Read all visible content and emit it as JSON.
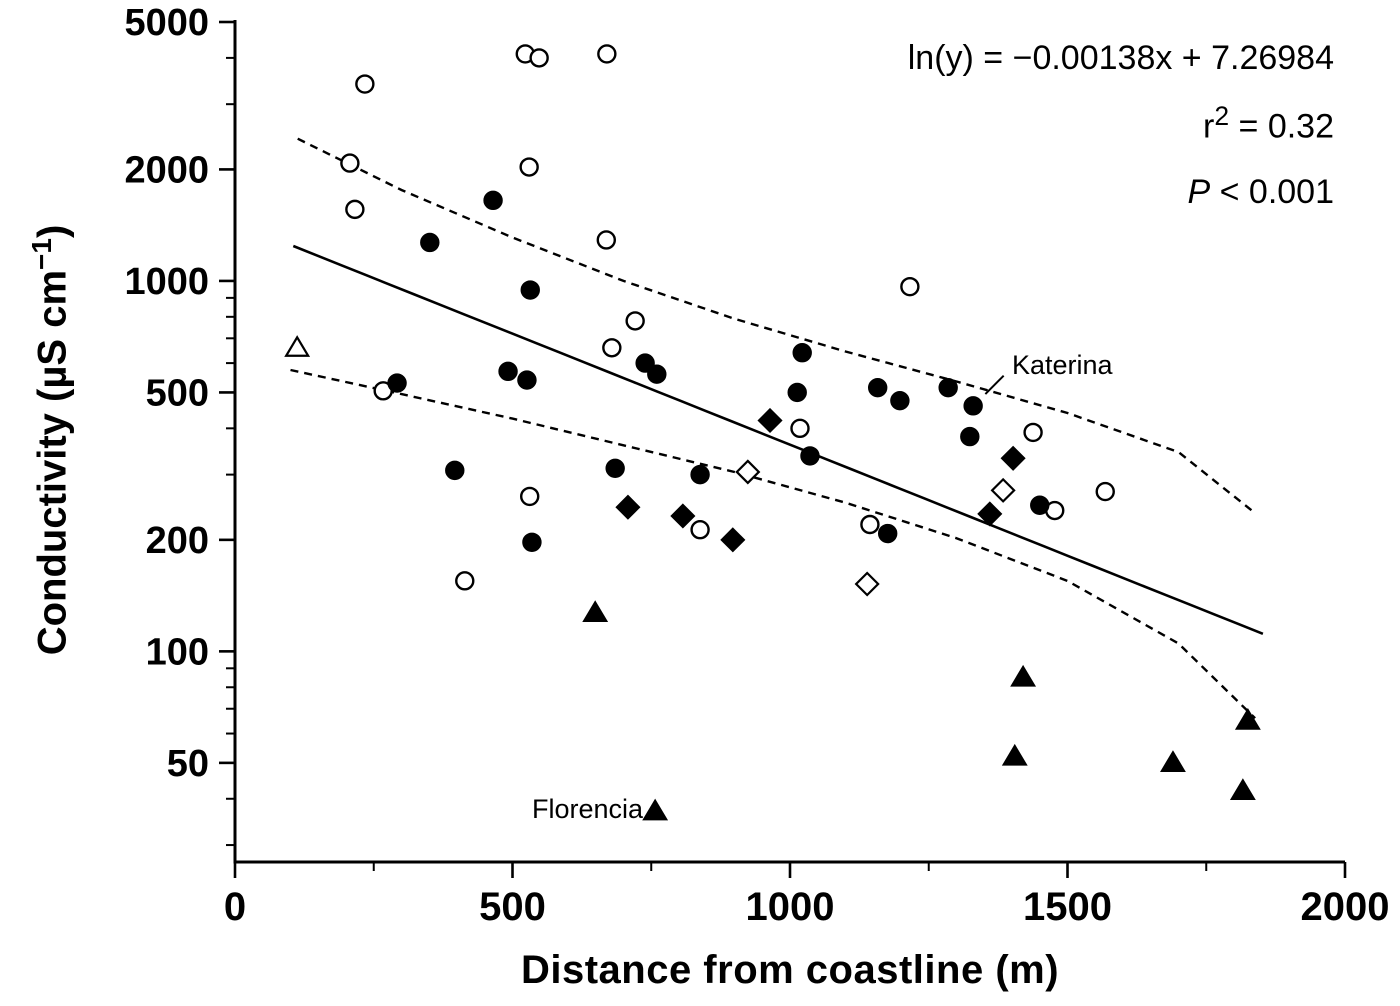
{
  "figure": {
    "background": "#ffffff",
    "ink": "#000000"
  },
  "axes": {
    "x_title": "Distance from coastline (m)",
    "y_title_base": "Conductivity (µS cm",
    "y_title_sup": "−1",
    "y_title_close": ")"
  },
  "stats": {
    "equation": "ln(y) = −0.00138x + 7.26984",
    "r_base": "r",
    "r_sup": "2",
    "r_rest": " = 0.32",
    "p_italic": "P",
    "p_rest": " < 0.001"
  },
  "labels": {
    "katerina": "Katerina",
    "florencia": "Florencia"
  },
  "chart_data": {
    "type": "scatter",
    "title": "",
    "xlabel": "Distance from coastline (m)",
    "ylabel": "Conductivity (µS cm⁻¹)",
    "x_axis": {
      "min": 0,
      "max": 2000,
      "major_ticks": [
        0,
        500,
        1000,
        1500,
        2000
      ],
      "minor_ticks": [
        250,
        750,
        1250,
        1750
      ]
    },
    "y_axis": {
      "scale": "log",
      "min": 27,
      "max": 5000,
      "major_ticks": [
        5000,
        2000,
        1000,
        500,
        200,
        100,
        50
      ],
      "minor_ticks": [
        4000,
        3000,
        900,
        800,
        700,
        600,
        400,
        300,
        90,
        80,
        70,
        60,
        40,
        30
      ]
    },
    "series": [
      {
        "name": "open circles",
        "marker": "circle",
        "fill": "open",
        "points": [
          [
            234,
            3400
          ],
          [
            523,
            4100
          ],
          [
            548,
            4000
          ],
          [
            670,
            4100
          ],
          [
            207,
            2080
          ],
          [
            530,
            2030
          ],
          [
            216,
            1560
          ],
          [
            669,
            1290
          ],
          [
            1216,
            965
          ],
          [
            721,
            780
          ],
          [
            679,
            660
          ],
          [
            267,
            505
          ],
          [
            531,
            262
          ],
          [
            838,
            213
          ],
          [
            414,
            155
          ],
          [
            1018,
            400
          ],
          [
            1144,
            220
          ],
          [
            1438,
            390
          ],
          [
            1477,
            240
          ],
          [
            1568,
            270
          ]
        ]
      },
      {
        "name": "filled circles",
        "marker": "circle",
        "fill": "filled",
        "points": [
          [
            292,
            530
          ],
          [
            351,
            1270
          ],
          [
            465,
            1650
          ],
          [
            492,
            570
          ],
          [
            526,
            540
          ],
          [
            532,
            945
          ],
          [
            535,
            197
          ],
          [
            396,
            308
          ],
          [
            685,
            312
          ],
          [
            739,
            600
          ],
          [
            760,
            560
          ],
          [
            838,
            300
          ],
          [
            1022,
            640
          ],
          [
            1013,
            500
          ],
          [
            1036,
            337
          ],
          [
            1158,
            515
          ],
          [
            1176,
            208
          ],
          [
            1198,
            475
          ],
          [
            1285,
            515
          ],
          [
            1330,
            460
          ],
          [
            1324,
            380
          ],
          [
            1450,
            248
          ]
        ]
      },
      {
        "name": "filled diamonds",
        "marker": "diamond",
        "fill": "filled",
        "points": [
          [
            708,
            245
          ],
          [
            807,
            232
          ],
          [
            897,
            200
          ],
          [
            964,
            420
          ],
          [
            1402,
            332
          ],
          [
            1360,
            235
          ]
        ]
      },
      {
        "name": "open diamonds",
        "marker": "diamond",
        "fill": "open",
        "points": [
          [
            924,
            305
          ],
          [
            1139,
            152
          ],
          [
            1384,
            272
          ]
        ]
      },
      {
        "name": "filled triangles",
        "marker": "triangle",
        "fill": "filled",
        "points": [
          [
            649,
            127
          ],
          [
            757,
            37
          ],
          [
            1420,
            85
          ],
          [
            1405,
            52
          ],
          [
            1690,
            50
          ],
          [
            1825,
            65
          ],
          [
            1816,
            42
          ]
        ]
      },
      {
        "name": "open triangles",
        "marker": "triangle",
        "fill": "open",
        "points": [
          [
            112,
            660
          ]
        ]
      }
    ],
    "fit": {
      "label": "ln(y) = −0.00138x + 7.26984",
      "slope": -0.00138,
      "intercept": 7.26984,
      "r2": 0.32,
      "p": "< 0.001",
      "x_range": [
        105,
        1852
      ],
      "style": "solid"
    },
    "confidence_band": {
      "style": "dashed",
      "upper": [
        [
          113,
          2420
        ],
        [
          300,
          1760
        ],
        [
          500,
          1310
        ],
        [
          700,
          1000
        ],
        [
          900,
          790
        ],
        [
          1100,
          645
        ],
        [
          1300,
          535
        ],
        [
          1500,
          440
        ],
        [
          1700,
          345
        ],
        [
          1832,
          240
        ]
      ],
      "lower": [
        [
          100,
          575
        ],
        [
          300,
          495
        ],
        [
          500,
          425
        ],
        [
          700,
          360
        ],
        [
          900,
          305
        ],
        [
          1100,
          252
        ],
        [
          1300,
          202
        ],
        [
          1500,
          155
        ],
        [
          1700,
          105
        ],
        [
          1838,
          66
        ]
      ]
    },
    "annotations": [
      {
        "text": "Katerina",
        "leader": [
          [
            1385,
            555
          ],
          [
            1352,
            495
          ]
        ]
      },
      {
        "text": "Florencia",
        "marker_at": [
          757,
          37
        ]
      }
    ]
  }
}
